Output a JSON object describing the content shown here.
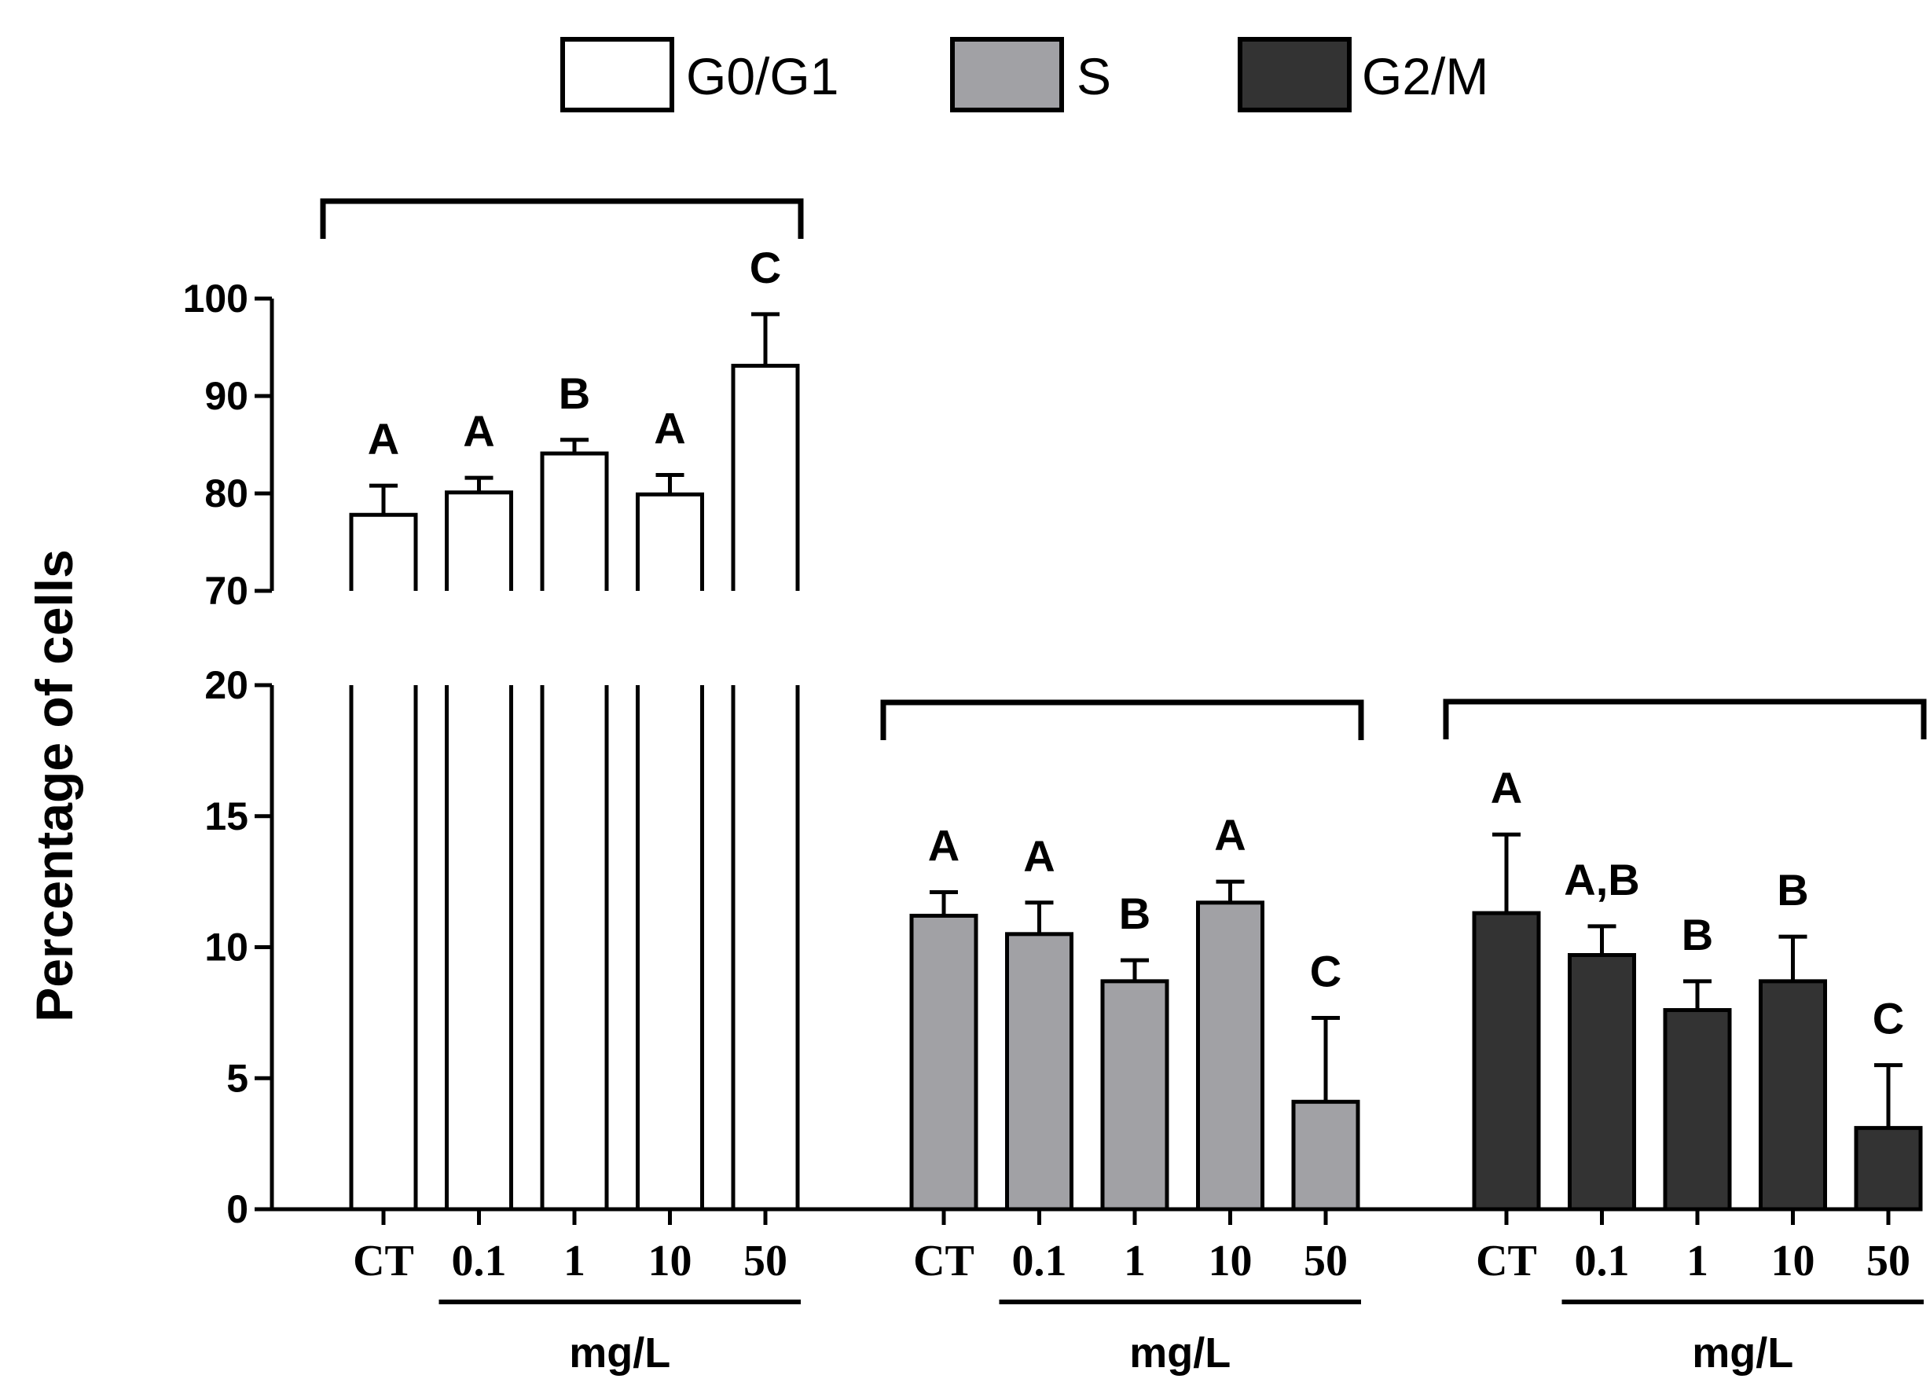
{
  "chart_data": {
    "type": "bar",
    "ylabel": "Percentage of cells",
    "categories": [
      "CT",
      "0.1",
      "1",
      "10",
      "50"
    ],
    "unit_label": "mg/L",
    "y_axis": {
      "broken": true,
      "lower_range": [
        0,
        20
      ],
      "upper_range": [
        70,
        100
      ],
      "lower_ticks": [
        "0",
        "5",
        "10",
        "15",
        "20"
      ],
      "upper_ticks": [
        "70",
        "80",
        "90",
        "100"
      ]
    },
    "legend": [
      "G0/G1",
      "S",
      "G2/M"
    ],
    "series": [
      {
        "name": "G0/G1",
        "color": "#ffffff",
        "values": [
          77.8,
          80.1,
          84.1,
          79.9,
          93.1
        ],
        "errors": [
          3.0,
          1.5,
          1.4,
          2.0,
          5.3
        ],
        "letters": [
          "A",
          "A",
          "B",
          "A",
          "C"
        ]
      },
      {
        "name": "S",
        "color": "#a1a1a5",
        "values": [
          11.2,
          10.5,
          8.7,
          11.7,
          4.1
        ],
        "errors": [
          0.9,
          1.2,
          0.8,
          0.8,
          3.2
        ],
        "letters": [
          "A",
          "A",
          "B",
          "A",
          "C"
        ]
      },
      {
        "name": "G2/M",
        "color": "#333333",
        "values": [
          11.3,
          9.7,
          7.6,
          8.7,
          3.1
        ],
        "errors": [
          3.0,
          1.1,
          1.1,
          1.7,
          2.4
        ],
        "letters": [
          "A",
          "A,B",
          "B",
          "B",
          "C"
        ]
      }
    ]
  }
}
